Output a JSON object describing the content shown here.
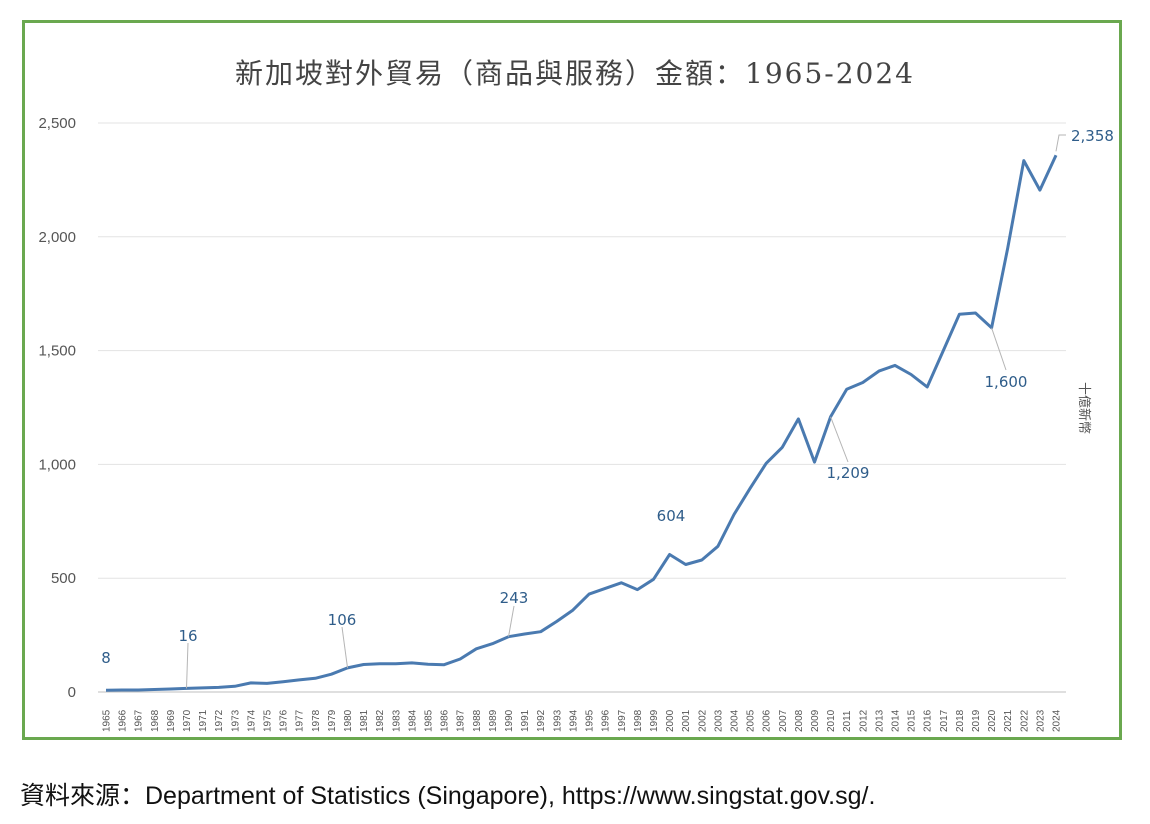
{
  "chart_data": {
    "type": "line",
    "title": "新加坡對外貿易（商品與服務）金額：1965-2024",
    "ylabel": "十億新幣",
    "xlabel": "",
    "ylim": [
      0,
      2500
    ],
    "yticks": [
      0,
      500,
      1000,
      1500,
      2000,
      2500
    ],
    "ytick_labels": [
      "0",
      "500",
      "1,000",
      "1,500",
      "2,000",
      "2,500"
    ],
    "grid": true,
    "line_color": "#4a7ab0",
    "x": [
      "1965",
      "1966",
      "1967",
      "1968",
      "1969",
      "1970",
      "1971",
      "1972",
      "1973",
      "1974",
      "1975",
      "1976",
      "1977",
      "1978",
      "1979",
      "1980",
      "1981",
      "1982",
      "1983",
      "1984",
      "1985",
      "1986",
      "1987",
      "1988",
      "1989",
      "1990",
      "1991",
      "1992",
      "1993",
      "1994",
      "1995",
      "1996",
      "1997",
      "1998",
      "1999",
      "2000",
      "2001",
      "2002",
      "2003",
      "2004",
      "2005",
      "2006",
      "2007",
      "2008",
      "2009",
      "2010",
      "2011",
      "2012",
      "2013",
      "2014",
      "2015",
      "2016",
      "2017",
      "2018",
      "2019",
      "2020",
      "2021",
      "2022",
      "2023",
      "2024"
    ],
    "series": [
      {
        "values": [
          8,
          9,
          9,
          11,
          13,
          16,
          18,
          20,
          25,
          40,
          38,
          45,
          53,
          60,
          78,
          106,
          121,
          124,
          124,
          128,
          122,
          120,
          145,
          190,
          212,
          243,
          255,
          265,
          310,
          360,
          430,
          455,
          480,
          450,
          495,
          604,
          560,
          580,
          640,
          780,
          895,
          1005,
          1075,
          1200,
          1010,
          1209,
          1330,
          1360,
          1410,
          1435,
          1395,
          1340,
          1500,
          1660,
          1665,
          1600,
          1950,
          2335,
          2205,
          2358
        ]
      }
    ],
    "annotations": [
      {
        "year": "1965",
        "label": "8"
      },
      {
        "year": "1970",
        "label": "16"
      },
      {
        "year": "1980",
        "label": "106"
      },
      {
        "year": "1990",
        "label": "243"
      },
      {
        "year": "2000",
        "label": "604"
      },
      {
        "year": "2010",
        "label": "1,209"
      },
      {
        "year": "2020",
        "label": "1,600"
      },
      {
        "year": "2024",
        "label": "2,358"
      }
    ],
    "frame_color": "#6aa84f"
  },
  "source": "資料來源：Department of Statistics (Singapore), https://www.singstat.gov.sg/."
}
